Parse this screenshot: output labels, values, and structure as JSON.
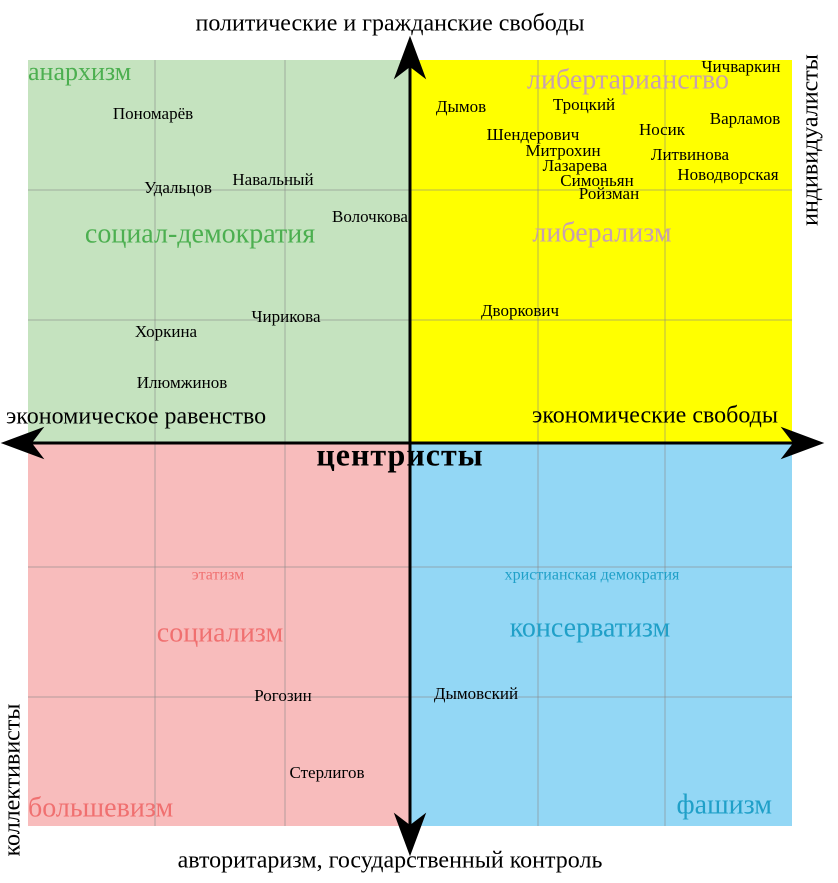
{
  "axes": {
    "top": "политические и гражданские свободы",
    "bottom": "авторитаризм, государственный контроль",
    "left": "экономическое равенство",
    "right": "экономические свободы",
    "individualists": "индивидуалисты",
    "collectivists": "коллективисты",
    "center": "центристы"
  },
  "ideologies": [
    "анархизм",
    "социал-демократия",
    "либертарианство",
    "либерализм",
    "этатизм",
    "социализм",
    "большевизм",
    "христианская демократия",
    "консерватизм",
    "фашизм"
  ],
  "persons": [
    "Пономарёв",
    "Удальцов",
    "Навальный",
    "Волочкова",
    "Чирикова",
    "Хоркина",
    "Илюмжинов",
    "Дымов",
    "Троцкий",
    "Чичваркин",
    "Варламов",
    "Шендерович",
    "Носик",
    "Митрохин",
    "Литвинова",
    "Лазарева",
    "Новодворская",
    "Симоньян",
    "Ройзман",
    "Дворкович",
    "Рогозин",
    "Стерлигов",
    "Дымовский"
  ]
}
